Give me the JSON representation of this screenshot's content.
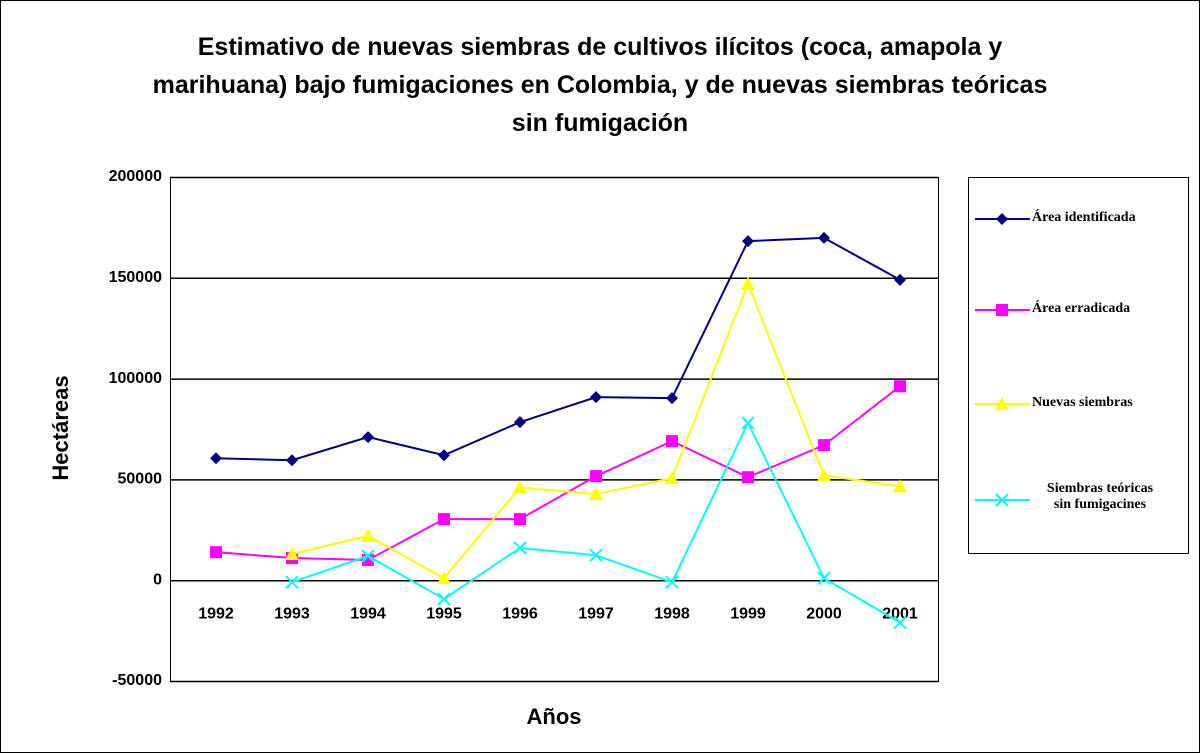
{
  "chart_data": {
    "type": "line",
    "title": "Estimativo de nuevas siembras de cultivos ilícitos (coca, amapola y marihuana) bajo fumigaciones en Colombia, y de nuevas siembras teóricas sin fumigación",
    "x_label": "Años",
    "y_label": "Hectáreas",
    "categories": [
      "1992",
      "1993",
      "1994",
      "1995",
      "1996",
      "1997",
      "1998",
      "1999",
      "2000",
      "2001"
    ],
    "series": [
      {
        "name": "Área identificada",
        "color": "#000080",
        "marker": "diamond",
        "values": [
          60500,
          59500,
          71000,
          62000,
          78400,
          90800,
          90300,
          168200,
          169800,
          149000
        ]
      },
      {
        "name": "Área erradicada",
        "color": "#ff00ff",
        "marker": "square",
        "values": [
          13900,
          11000,
          10000,
          30300,
          30300,
          51600,
          69000,
          51100,
          67000,
          96200
        ]
      },
      {
        "name": "Nuevas siembras",
        "color": "#ffff00",
        "marker": "triangle",
        "values": [
          null,
          13000,
          22000,
          1000,
          46000,
          42700,
          50600,
          147000,
          52000,
          46600
        ]
      },
      {
        "name": "Siembras teóricas sin fumigacines",
        "color": "#00ffff",
        "marker": "x",
        "values": [
          null,
          -1000,
          12000,
          -9300,
          16000,
          12400,
          -1000,
          78000,
          1000,
          -21000
        ]
      }
    ],
    "ylim": [
      -50000,
      200000
    ],
    "yticks": [
      -50000,
      0,
      50000,
      100000,
      150000,
      200000
    ],
    "grid": true,
    "legend": "right"
  }
}
